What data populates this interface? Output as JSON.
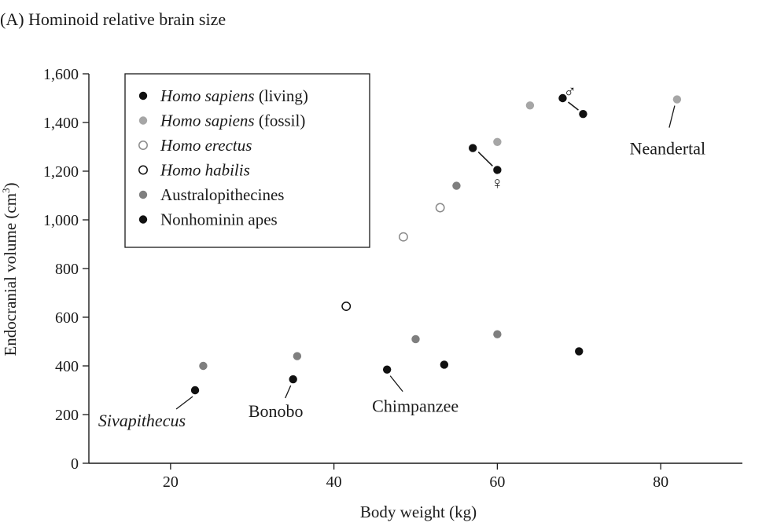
{
  "chart_data": {
    "type": "scatter",
    "title": "(A)  Hominoid relative brain size",
    "xlabel": "Body weight (kg)",
    "ylabel_main": "Endocranial volume (cm",
    "ylabel_sup": "3",
    "ylabel_close": ")",
    "xlim": [
      10,
      90
    ],
    "ylim": [
      0,
      1600
    ],
    "x_ticks": [
      20,
      40,
      60,
      80
    ],
    "y_ticks": [
      0,
      200,
      400,
      600,
      800,
      1000,
      1200,
      1400,
      1600
    ],
    "x_tick_labels": [
      "20",
      "40",
      "60",
      "80"
    ],
    "y_tick_labels": [
      "0",
      "200",
      "400",
      "600",
      "800",
      "1,000",
      "1,200",
      "1,400",
      "1,600"
    ],
    "legend_position": "top-left",
    "series": [
      {
        "name": "Homo sapiens",
        "name_suffix": " (living)",
        "italic": true,
        "marker": "filled",
        "color": "#111111",
        "points": [
          [
            57,
            1295
          ],
          [
            70.5,
            1435
          ],
          [
            60,
            1205
          ],
          [
            68,
            1500
          ]
        ]
      },
      {
        "name": "Homo sapiens",
        "name_suffix": " (fossil)",
        "italic": true,
        "marker": "filled",
        "color": "#a6a6a6",
        "points": [
          [
            60,
            1320
          ],
          [
            64,
            1470
          ],
          [
            82,
            1495
          ]
        ]
      },
      {
        "name": "Homo erectus",
        "name_suffix": "",
        "italic": true,
        "marker": "open",
        "color": "#8a8a8a",
        "points": [
          [
            48.5,
            930
          ],
          [
            53,
            1050
          ]
        ]
      },
      {
        "name": "Homo habilis",
        "name_suffix": "",
        "italic": true,
        "marker": "open",
        "color": "#111111",
        "points": [
          [
            41.5,
            645
          ]
        ]
      },
      {
        "name": "Australopithecines",
        "name_suffix": "",
        "italic": false,
        "marker": "filled",
        "color": "#7f7f7f",
        "points": [
          [
            24,
            400
          ],
          [
            35.5,
            440
          ],
          [
            50,
            510
          ],
          [
            60,
            530
          ],
          [
            55,
            1140
          ]
        ]
      },
      {
        "name": "Nonhominin apes",
        "name_suffix": "",
        "italic": false,
        "marker": "filled",
        "color": "#111111",
        "points": [
          [
            23,
            300
          ],
          [
            35,
            345
          ],
          [
            46.5,
            385
          ],
          [
            53.5,
            405
          ],
          [
            70,
            460
          ]
        ]
      }
    ],
    "annotations": [
      {
        "text": "Sivapithecus",
        "italic": true
      },
      {
        "text": "Bonobo",
        "italic": false
      },
      {
        "text": "Chimpanzee",
        "italic": false
      },
      {
        "text": "Neandertal",
        "italic": false
      }
    ],
    "sex_symbols": {
      "male": "♂",
      "female": "♀"
    }
  }
}
